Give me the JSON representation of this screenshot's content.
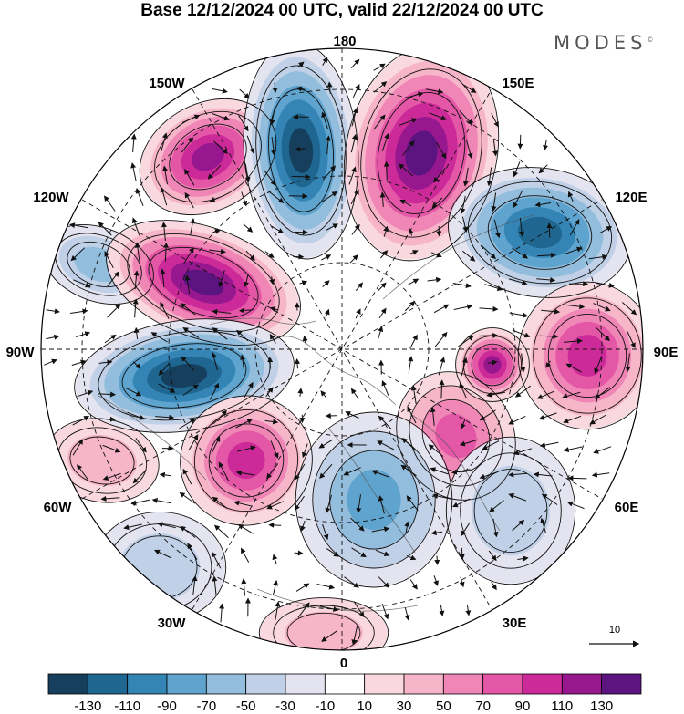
{
  "title": "Base 12/12/2024 00 UTC, valid 22/12/2024 00 UTC",
  "brand": "MODES",
  "brand_mark": "©",
  "longitude_labels": {
    "top": "180",
    "bottom": "0",
    "left": "90W",
    "right": "90E",
    "upper_left_1": "150W",
    "upper_left_2": "120W",
    "upper_right_1": "150E",
    "upper_right_2": "120E",
    "lower_left_1": "60W",
    "lower_left_2": "30W",
    "lower_right_1": "60E",
    "lower_right_2": "30E"
  },
  "reference_vector": "10",
  "colorbar": {
    "colors": [
      "#163f5e",
      "#1f6690",
      "#3485b5",
      "#5fa4cf",
      "#93bddc",
      "#c0d0e6",
      "#e4e3f0",
      "#ffffff",
      "#f9d9df",
      "#f6b5c9",
      "#ef86b6",
      "#e457a6",
      "#cd2a99",
      "#96178e",
      "#5c1580"
    ],
    "ticks": [
      "-130",
      "-110",
      "-90",
      "-70",
      "-50",
      "-30",
      "-10",
      "10",
      "30",
      "50",
      "70",
      "90",
      "110",
      "130"
    ]
  },
  "anomaly_centers": [
    {
      "name": "a1",
      "sign": "negative",
      "level": 3
    },
    {
      "name": "a2",
      "sign": "positive",
      "level": 2
    },
    {
      "name": "a3",
      "sign": "positive",
      "level": 6
    },
    {
      "name": "a4",
      "sign": "positive",
      "level": 7
    },
    {
      "name": "a5",
      "sign": "negative",
      "level": 7
    },
    {
      "name": "a6",
      "sign": "positive",
      "level": 7
    },
    {
      "name": "a7",
      "sign": "negative",
      "level": 7
    },
    {
      "name": "a8",
      "sign": "positive",
      "level": 5
    },
    {
      "name": "a9",
      "sign": "negative",
      "level": 6
    },
    {
      "name": "a10",
      "sign": "positive",
      "level": 5
    },
    {
      "name": "a11",
      "sign": "positive",
      "level": 4
    },
    {
      "name": "a12",
      "sign": "negative",
      "level": 4
    },
    {
      "name": "a13",
      "sign": "positive",
      "level": 2
    },
    {
      "name": "a14",
      "sign": "negative",
      "level": 2
    },
    {
      "name": "a15",
      "sign": "positive",
      "level": 6
    },
    {
      "name": "a16",
      "sign": "negative",
      "level": 2
    }
  ]
}
